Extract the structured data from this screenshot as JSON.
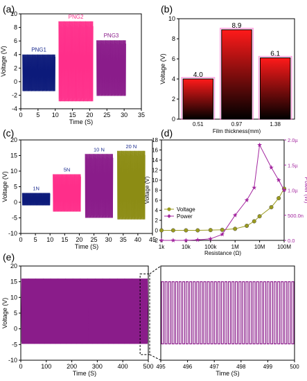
{
  "chart_data": [
    {
      "panel": "(a)",
      "type": "bar",
      "xlabel": "Time (S)",
      "ylabel": "Voltage (V)",
      "xlim": [
        0,
        35
      ],
      "ylim": [
        -4,
        10
      ],
      "xticks": [
        0,
        5,
        10,
        15,
        20,
        25,
        30,
        35
      ],
      "yticks": [
        -4,
        -2,
        0,
        2,
        4,
        6,
        8,
        10
      ],
      "blocks": [
        {
          "label": "PNG1",
          "x_start": 0.5,
          "x_end": 10,
          "min": -1.4,
          "max": 4.0,
          "color": "#0c1a7a",
          "label_color": "#1a2b8f"
        },
        {
          "label": "PNG2",
          "x_start": 11,
          "x_end": 21,
          "min": -2.9,
          "max": 8.9,
          "color": "#ff2e8a",
          "label_color": "#ff2e8a"
        },
        {
          "label": "PNG3",
          "x_start": 22,
          "x_end": 30.5,
          "min": -2.1,
          "max": 6.1,
          "color": "#8a1c8a",
          "label_color": "#8a1c8a"
        }
      ]
    },
    {
      "panel": "(b)",
      "type": "bar",
      "xlabel": "Film thickness(mm)",
      "ylabel": "Voltage (V)",
      "ylim": [
        0,
        10
      ],
      "yticks": [
        0,
        2,
        4,
        6,
        8,
        10
      ],
      "categories": [
        "0.51",
        "0.97",
        "1.38"
      ],
      "values": [
        4.0,
        8.9,
        6.1
      ],
      "value_labels": [
        "4.0",
        "8.9",
        "6.1"
      ],
      "gradient": [
        "#ff1a1a",
        "#000000"
      ]
    },
    {
      "panel": "(c)",
      "type": "bar",
      "xlabel": "Time (S)",
      "ylabel": "Voltage (V)",
      "xlim": [
        0,
        45
      ],
      "ylim": [
        -10,
        20
      ],
      "xticks": [
        0,
        5,
        10,
        15,
        20,
        25,
        30,
        35,
        40,
        45
      ],
      "yticks": [
        -10,
        -5,
        0,
        5,
        10,
        15,
        20
      ],
      "blocks": [
        {
          "label": "1N",
          "x_start": 0.5,
          "x_end": 10,
          "min": -1.0,
          "max": 3.0,
          "color": "#0c1a7a",
          "label_color": "#1a2b8f"
        },
        {
          "label": "5N",
          "x_start": 11,
          "x_end": 20.5,
          "min": -3.0,
          "max": 9.0,
          "color": "#ff2e8a",
          "label_color": "#1a2b8f"
        },
        {
          "label": "10 N",
          "x_start": 22,
          "x_end": 31.5,
          "min": -5.0,
          "max": 15.5,
          "color": "#8a1c8a",
          "label_color": "#1a2b8f"
        },
        {
          "label": "20 N",
          "x_start": 33,
          "x_end": 42.5,
          "min": -5.5,
          "max": 16.5,
          "color": "#8c8c14",
          "label_color": "#1a2b8f"
        }
      ]
    },
    {
      "panel": "(d)",
      "type": "line",
      "xlabel": "Resistance (Ω)",
      "ylabel": "Voltage (V)",
      "ylabel_right": "Power (W)",
      "xscale": "log",
      "xlim": [
        1000,
        100000000
      ],
      "xtick_values": [
        1000,
        10000,
        100000,
        1000000,
        10000000,
        100000000
      ],
      "xtick_labels": [
        "1k",
        "10k",
        "100k",
        "1M",
        "10M",
        "100M"
      ],
      "ylim": [
        -2,
        18
      ],
      "yticks": [
        -2,
        0,
        2,
        4,
        6,
        8,
        10,
        12,
        14,
        16,
        18
      ],
      "ylim_right": [
        0,
        2e-06
      ],
      "yticks_right": [
        0,
        5e-07,
        1e-06,
        1.5e-06,
        2e-06
      ],
      "ytick_labels_right": [
        "0.0",
        "500.0n",
        "1.0µ",
        "1.5µ",
        "2.0µ"
      ],
      "legend": "left",
      "series": [
        {
          "name": "Voltage",
          "axis": "left",
          "color": "#9a9a1e",
          "marker": "circle",
          "x": [
            1000,
            3000,
            10000,
            30000,
            100000,
            300000,
            1000000,
            3000000,
            6000000,
            10000000,
            30000000,
            60000000,
            100000000
          ],
          "y": [
            0.0,
            0.0,
            0.0,
            0.0,
            0.05,
            0.1,
            0.3,
            0.9,
            1.8,
            2.8,
            4.6,
            6.4,
            8.3
          ]
        },
        {
          "name": "Power",
          "axis": "right",
          "color": "#a3269f",
          "marker": "star",
          "x": [
            1000,
            3000,
            10000,
            30000,
            100000,
            300000,
            1000000,
            3000000,
            6000000,
            10000000,
            30000000,
            60000000,
            100000000
          ],
          "y": [
            0,
            0,
            0,
            1e-08,
            3e-08,
            1.2e-07,
            5e-07,
            8e-07,
            1.05e-06,
            1.9e-06,
            1.45e-06,
            1.2e-06,
            1e-06
          ]
        }
      ]
    },
    {
      "panel": "(e)",
      "type": "area",
      "xlabel": "Time (S)",
      "ylabel": "Voltage (V)",
      "xlim": [
        0,
        500
      ],
      "ylim": [
        -10,
        20
      ],
      "xticks": [
        0,
        100,
        200,
        300,
        400,
        500
      ],
      "yticks": [
        -10,
        -5,
        0,
        5,
        10,
        15,
        20
      ],
      "signal": {
        "min": -4.8,
        "max": 16.0,
        "color": "#8a1c8a"
      },
      "zoom_window": [
        495,
        500
      ]
    },
    {
      "panel": "(e) inset",
      "type": "line",
      "xlabel": "Time (S)",
      "xlim": [
        495,
        500
      ],
      "ylim": [
        -10,
        20
      ],
      "xticks": [
        495,
        496,
        497,
        498,
        499,
        500
      ],
      "signal": {
        "min": -4.8,
        "max": 15.0,
        "color": "#8a1c8a",
        "cycles": 38
      }
    }
  ]
}
